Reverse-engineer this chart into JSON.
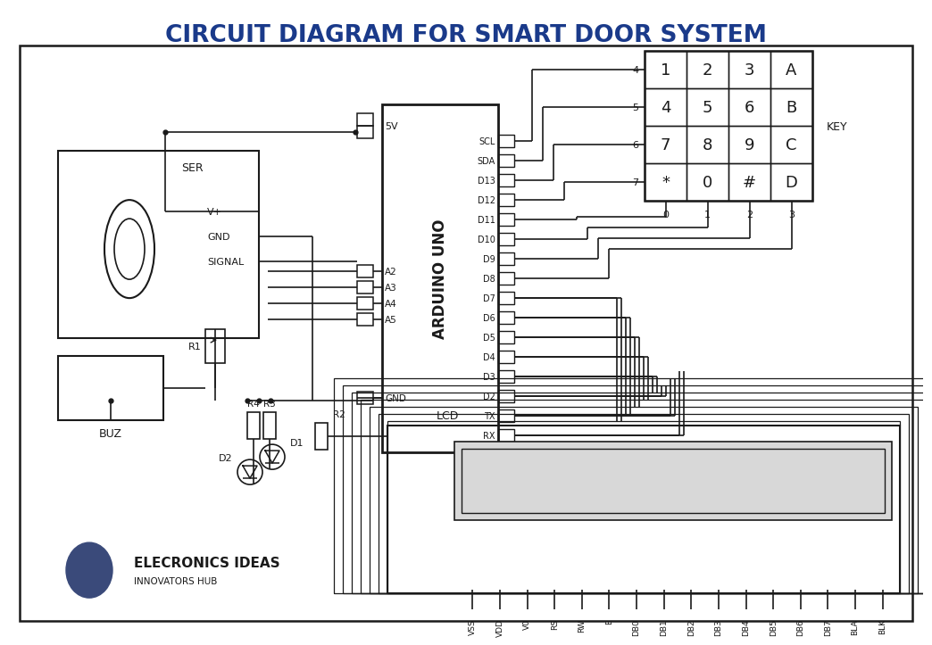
{
  "title": "CIRCUIT DIAGRAM FOR SMART DOOR SYSTEM",
  "title_color": "#1a3a8a",
  "bg_color": "#ffffff",
  "line_color": "#1a1a1a",
  "title_fontsize": 19,
  "logo_text1": "ELECRONICS IDEAS",
  "logo_text2": "INNOVATORS HUB",
  "logo_circle_color": "#3a4a7a",
  "keypad_rows": [
    [
      "1",
      "2",
      "3",
      "A"
    ],
    [
      "4",
      "5",
      "6",
      "B"
    ],
    [
      "7",
      "8",
      "9",
      "C"
    ],
    [
      "*",
      "0",
      "#",
      "D"
    ]
  ],
  "keypad_col_labels": [
    "0",
    "1",
    "2",
    "3"
  ],
  "keypad_row_labels": [
    "4",
    "5",
    "6",
    "7"
  ],
  "lcd_pins": [
    "VSS",
    "VDD",
    "V0",
    "RS",
    "RW",
    "E",
    "DB0",
    "DB1",
    "DB2",
    "DB3",
    "DB4",
    "DB5",
    "DB6",
    "DB7",
    "BLA",
    "BLK"
  ],
  "arduino_right_pins": [
    "SCL",
    "SDA",
    "D13",
    "D12",
    "D11",
    "D10",
    "D9",
    "D8",
    "D7",
    "D6",
    "D5",
    "D4",
    "D3",
    "D2",
    "TX",
    "RX"
  ],
  "servo_labels": [
    "V+",
    "GND",
    "SIGNAL"
  ],
  "buzzer_label": "BUZ",
  "ser_label": "SER",
  "key_label": "KEY",
  "lcd_label": "LCD",
  "arduino_label": "ARDUINO UNO",
  "r1_label": "R1",
  "r2_label": "R2",
  "r3_label": "R3",
  "r4_label": "R4",
  "d1_label": "D1",
  "d2_label": "D2",
  "5v_label": "5V",
  "gnd_label": "GND"
}
